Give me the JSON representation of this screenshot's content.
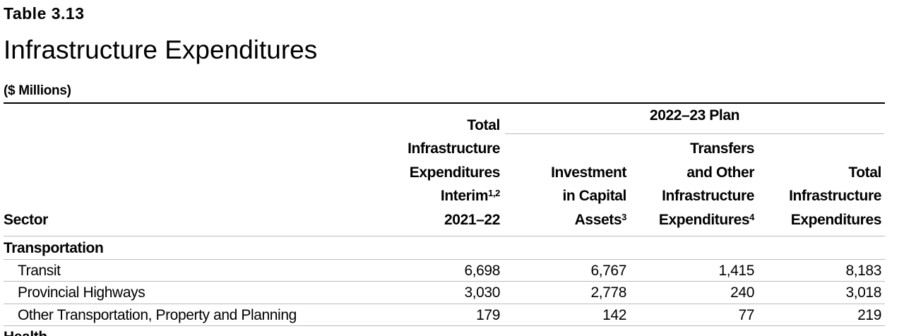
{
  "header": {
    "label": "Table 3.13",
    "title": "Infrastructure Expenditures",
    "unit": "($ Millions)"
  },
  "table": {
    "group_header": "2022–23 Plan",
    "columns": [
      {
        "lines": [
          {
            "text": "Sector"
          }
        ]
      },
      {
        "lines": [
          {
            "text": "Total"
          },
          {
            "text": "Infrastructure"
          },
          {
            "text": "Expenditures"
          },
          {
            "text": "Interim",
            "sup": "1,2"
          },
          {
            "text": "2021–22"
          }
        ]
      },
      {
        "lines": [
          {
            "text": "Investment"
          },
          {
            "text": "in Capital"
          },
          {
            "text": "Assets",
            "sup": "3"
          }
        ]
      },
      {
        "lines": [
          {
            "text": "Transfers"
          },
          {
            "text": "and Other"
          },
          {
            "text": "Infrastructure"
          },
          {
            "text": "Expenditures",
            "sup": "4"
          }
        ]
      },
      {
        "lines": [
          {
            "text": "Total"
          },
          {
            "text": "Infrastructure"
          },
          {
            "text": "Expenditures"
          }
        ]
      }
    ],
    "sections": [
      {
        "name": "Transportation",
        "rows": [
          [
            "Transit",
            "6,698",
            "6,767",
            "1,415",
            "8,183"
          ],
          [
            "Provincial Highways",
            "3,030",
            "2,778",
            "240",
            "3,018"
          ],
          [
            "Other Transportation, Property and Planning",
            "179",
            "142",
            "77",
            "219"
          ]
        ]
      },
      {
        "name": "Health",
        "rows": []
      }
    ]
  }
}
